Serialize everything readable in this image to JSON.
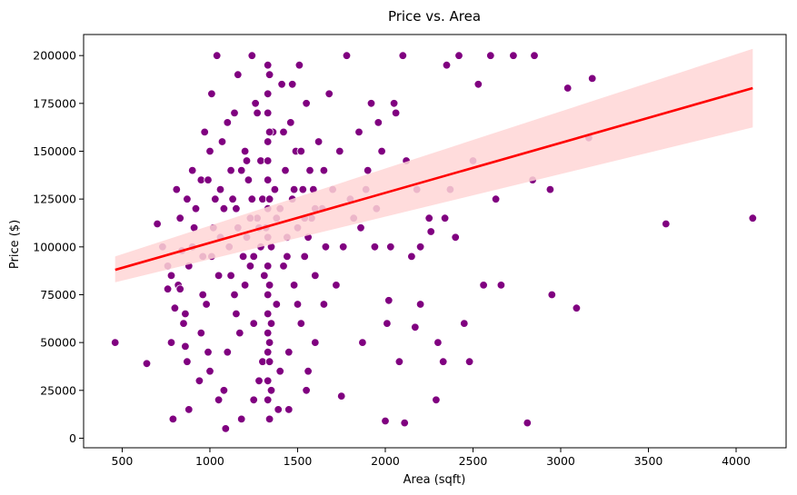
{
  "chart_data": {
    "type": "scatter",
    "title": "Price vs. Area",
    "xlabel": "Area (sqft)",
    "ylabel": "Price ($)",
    "xlim": [
      280,
      4285
    ],
    "ylim": [
      -5000,
      211000
    ],
    "xticks": [
      500,
      1000,
      1500,
      2000,
      2500,
      3000,
      3500,
      4000
    ],
    "yticks": [
      0,
      25000,
      50000,
      75000,
      100000,
      125000,
      150000,
      175000,
      200000
    ],
    "grid": false,
    "point_color": "#800080",
    "line_color": "#ff0000",
    "band_color": "#ffd6d6",
    "regression": {
      "x": [
        460,
        4095
      ],
      "y": [
        88000,
        183000
      ],
      "ci_lower": [
        81500,
        162500
      ],
      "ci_upper": [
        95000,
        203500
      ]
    },
    "points": [
      [
        460,
        50000
      ],
      [
        640,
        39000
      ],
      [
        700,
        112000
      ],
      [
        730,
        100000
      ],
      [
        760,
        78000
      ],
      [
        780,
        50000
      ],
      [
        790,
        10000
      ],
      [
        810,
        130000
      ],
      [
        830,
        115000
      ],
      [
        840,
        98000
      ],
      [
        850,
        60000
      ],
      [
        870,
        40000
      ],
      [
        880,
        15000
      ],
      [
        900,
        140000
      ],
      [
        920,
        120000
      ],
      [
        950,
        135000
      ],
      [
        960,
        95000
      ],
      [
        970,
        160000
      ],
      [
        980,
        70000
      ],
      [
        990,
        45000
      ],
      [
        1000,
        150000
      ],
      [
        1010,
        180000
      ],
      [
        1020,
        110000
      ],
      [
        1040,
        200000
      ],
      [
        1050,
        85000
      ],
      [
        1060,
        130000
      ],
      [
        1080,
        25000
      ],
      [
        1090,
        5000
      ],
      [
        1100,
        165000
      ],
      [
        1110,
        100000
      ],
      [
        1120,
        140000
      ],
      [
        1140,
        75000
      ],
      [
        1150,
        120000
      ],
      [
        1160,
        190000
      ],
      [
        1170,
        55000
      ],
      [
        1180,
        10000
      ],
      [
        1200,
        150000
      ],
      [
        1210,
        105000
      ],
      [
        1220,
        135000
      ],
      [
        1230,
        90000
      ],
      [
        1240,
        200000
      ],
      [
        1250,
        60000
      ],
      [
        1260,
        175000
      ],
      [
        1270,
        115000
      ],
      [
        1280,
        30000
      ],
      [
        1290,
        145000
      ],
      [
        1300,
        125000
      ],
      [
        1310,
        85000
      ],
      [
        1320,
        110000
      ],
      [
        1330,
        195000
      ],
      [
        1340,
        50000
      ],
      [
        1350,
        100000
      ],
      [
        1360,
        160000
      ],
      [
        1370,
        130000
      ],
      [
        1380,
        70000
      ],
      [
        1390,
        15000
      ],
      [
        1400,
        120000
      ],
      [
        1410,
        185000
      ],
      [
        1420,
        90000
      ],
      [
        1430,
        140000
      ],
      [
        1440,
        105000
      ],
      [
        1450,
        45000
      ],
      [
        1460,
        165000
      ],
      [
        1470,
        125000
      ],
      [
        1480,
        80000
      ],
      [
        1490,
        150000
      ],
      [
        1500,
        110000
      ],
      [
        1510,
        195000
      ],
      [
        1520,
        60000
      ],
      [
        1530,
        130000
      ],
      [
        1540,
        95000
      ],
      [
        1550,
        175000
      ],
      [
        1560,
        35000
      ],
      [
        1570,
        140000
      ],
      [
        1580,
        115000
      ],
      [
        1600,
        85000
      ],
      [
        1620,
        155000
      ],
      [
        1640,
        120000
      ],
      [
        1660,
        100000
      ],
      [
        1680,
        180000
      ],
      [
        1700,
        130000
      ],
      [
        1720,
        80000
      ],
      [
        1740,
        150000
      ],
      [
        1760,
        100000
      ],
      [
        1780,
        200000
      ],
      [
        1800,
        125000
      ],
      [
        1820,
        115000
      ],
      [
        1850,
        160000
      ],
      [
        1870,
        50000
      ],
      [
        1900,
        140000
      ],
      [
        1920,
        175000
      ],
      [
        1950,
        120000
      ],
      [
        1980,
        150000
      ],
      [
        2000,
        9000
      ],
      [
        2010,
        60000
      ],
      [
        2030,
        100000
      ],
      [
        2050,
        175000
      ],
      [
        2080,
        40000
      ],
      [
        2100,
        200000
      ],
      [
        2110,
        8000
      ],
      [
        2150,
        95000
      ],
      [
        2170,
        58000
      ],
      [
        2180,
        130000
      ],
      [
        2200,
        70000
      ],
      [
        2250,
        115000
      ],
      [
        2290,
        20000
      ],
      [
        2300,
        50000
      ],
      [
        2330,
        40000
      ],
      [
        2350,
        195000
      ],
      [
        2370,
        130000
      ],
      [
        2400,
        105000
      ],
      [
        2420,
        200000
      ],
      [
        2450,
        60000
      ],
      [
        2480,
        40000
      ],
      [
        2500,
        145000
      ],
      [
        2530,
        185000
      ],
      [
        2560,
        80000
      ],
      [
        2600,
        200000
      ],
      [
        2630,
        125000
      ],
      [
        2660,
        80000
      ],
      [
        2730,
        200000
      ],
      [
        2810,
        8000
      ],
      [
        2840,
        135000
      ],
      [
        2850,
        200000
      ],
      [
        2940,
        130000
      ],
      [
        2950,
        75000
      ],
      [
        3040,
        183000
      ],
      [
        3090,
        68000
      ],
      [
        3160,
        157000
      ],
      [
        3180,
        188000
      ],
      [
        3600,
        112000
      ],
      [
        4095,
        115000
      ],
      [
        1000,
        35000
      ],
      [
        1050,
        20000
      ],
      [
        1150,
        65000
      ],
      [
        1250,
        20000
      ],
      [
        1300,
        40000
      ],
      [
        1350,
        25000
      ],
      [
        1450,
        15000
      ],
      [
        1550,
        25000
      ],
      [
        1650,
        70000
      ],
      [
        1750,
        22000
      ],
      [
        950,
        55000
      ],
      [
        1100,
        45000
      ],
      [
        1200,
        80000
      ],
      [
        1250,
        95000
      ],
      [
        1350,
        60000
      ],
      [
        1400,
        35000
      ],
      [
        1500,
        70000
      ],
      [
        1600,
        50000
      ],
      [
        900,
        100000
      ],
      [
        870,
        125000
      ],
      [
        1330,
        180000
      ],
      [
        1330,
        170000
      ],
      [
        1330,
        155000
      ],
      [
        1330,
        145000
      ],
      [
        1330,
        135000
      ],
      [
        1330,
        120000
      ],
      [
        1330,
        105000
      ],
      [
        1330,
        90000
      ],
      [
        1330,
        75000
      ],
      [
        1330,
        65000
      ],
      [
        1330,
        55000
      ],
      [
        1330,
        45000
      ],
      [
        1330,
        30000
      ],
      [
        1330,
        20000
      ],
      [
        1340,
        10000
      ],
      [
        1340,
        40000
      ],
      [
        1340,
        80000
      ],
      [
        1340,
        125000
      ],
      [
        1340,
        160000
      ],
      [
        1340,
        190000
      ],
      [
        1130,
        125000
      ],
      [
        1180,
        140000
      ],
      [
        1210,
        145000
      ],
      [
        1270,
        170000
      ],
      [
        1420,
        160000
      ],
      [
        1470,
        185000
      ],
      [
        1520,
        150000
      ],
      [
        1560,
        105000
      ],
      [
        1600,
        120000
      ],
      [
        1650,
        140000
      ],
      [
        1030,
        125000
      ],
      [
        1080,
        120000
      ],
      [
        1160,
        110000
      ],
      [
        1240,
        125000
      ],
      [
        1280,
        110000
      ],
      [
        1380,
        115000
      ],
      [
        1440,
        95000
      ],
      [
        1480,
        130000
      ],
      [
        1540,
        115000
      ],
      [
        1590,
        130000
      ],
      [
        820,
        80000
      ],
      [
        860,
        65000
      ],
      [
        910,
        110000
      ],
      [
        960,
        75000
      ],
      [
        1010,
        95000
      ],
      [
        1060,
        105000
      ],
      [
        1120,
        85000
      ],
      [
        1190,
        95000
      ],
      [
        1230,
        115000
      ],
      [
        1290,
        100000
      ],
      [
        760,
        90000
      ],
      [
        780,
        85000
      ],
      [
        800,
        68000
      ],
      [
        830,
        78000
      ],
      [
        860,
        48000
      ],
      [
        880,
        90000
      ],
      [
        940,
        30000
      ],
      [
        990,
        135000
      ],
      [
        1070,
        155000
      ],
      [
        1140,
        170000
      ],
      [
        1860,
        110000
      ],
      [
        1890,
        130000
      ],
      [
        1940,
        100000
      ],
      [
        1960,
        165000
      ],
      [
        2020,
        72000
      ],
      [
        2060,
        170000
      ],
      [
        2120,
        145000
      ],
      [
        2200,
        100000
      ],
      [
        2260,
        108000
      ],
      [
        2340,
        115000
      ]
    ]
  }
}
